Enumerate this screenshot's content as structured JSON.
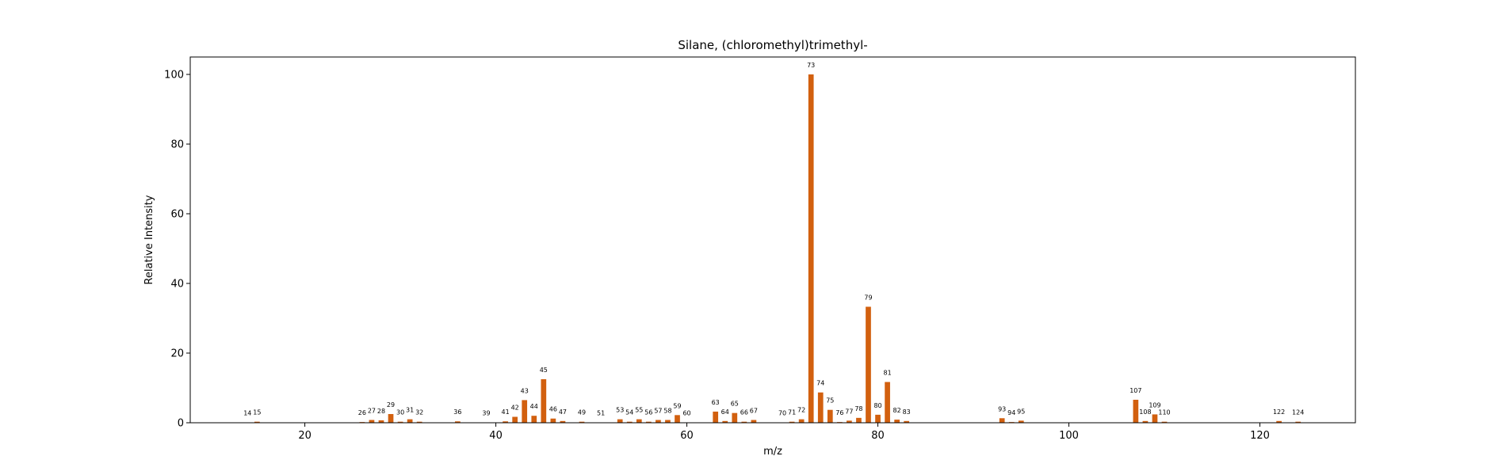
{
  "chart_data": {
    "type": "bar",
    "title": "Silane, (chloromethyl)trimethyl-",
    "xlabel": "m/z",
    "ylabel": "Relative Intensity",
    "xlim": [
      8,
      130
    ],
    "ylim": [
      0,
      105
    ],
    "xticks": [
      20,
      40,
      60,
      80,
      100,
      120
    ],
    "yticks": [
      0,
      20,
      40,
      60,
      80,
      100
    ],
    "grid": false,
    "bar_color": "#d2600f",
    "x": [
      14,
      15,
      26,
      27,
      28,
      29,
      30,
      31,
      32,
      36,
      39,
      41,
      42,
      43,
      44,
      45,
      46,
      47,
      49,
      51,
      53,
      54,
      55,
      56,
      57,
      58,
      59,
      60,
      63,
      64,
      65,
      66,
      67,
      70,
      71,
      72,
      73,
      74,
      75,
      76,
      77,
      78,
      79,
      80,
      81,
      82,
      83,
      93,
      94,
      95,
      107,
      108,
      109,
      110,
      122,
      124
    ],
    "values": [
      0.1,
      0.3,
      0.2,
      0.8,
      0.7,
      2.5,
      0.3,
      1.0,
      0.3,
      0.4,
      0.1,
      0.4,
      1.7,
      6.5,
      2.0,
      12.5,
      1.2,
      0.5,
      0.3,
      0.1,
      1.0,
      0.3,
      1.0,
      0.3,
      0.8,
      0.8,
      2.2,
      0.1,
      3.2,
      0.5,
      2.8,
      0.3,
      0.8,
      0.1,
      0.3,
      1.0,
      100,
      8.7,
      3.7,
      0.2,
      0.6,
      1.4,
      33.3,
      2.3,
      11.7,
      0.9,
      0.5,
      1.3,
      0.2,
      0.6,
      6.6,
      0.5,
      2.4,
      0.3,
      0.5,
      0.3
    ]
  }
}
